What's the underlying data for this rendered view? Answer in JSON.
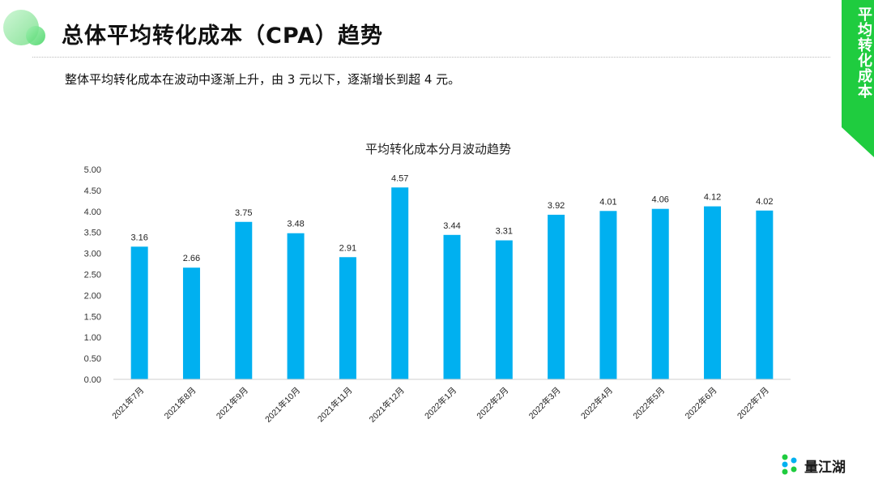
{
  "header": {
    "title": "总体平均转化成本（CPA）趋势",
    "subtitle": "整体平均转化成本在波动中逐渐上升，由 3 元以下，逐渐增长到超 4 元。"
  },
  "side_tab": {
    "label": "平均转化成本"
  },
  "brand": {
    "name": "量江湖"
  },
  "colors": {
    "accent": "#1fcc3f",
    "bar": "#00b0f0"
  },
  "chart_data": {
    "type": "bar",
    "title": "平均转化成本分月波动趋势",
    "categories": [
      "2021年7月",
      "2021年8月",
      "2021年9月",
      "2021年10月",
      "2021年11月",
      "2021年12月",
      "2022年1月",
      "2022年2月",
      "2022年3月",
      "2022年4月",
      "2022年5月",
      "2022年6月",
      "2022年7月"
    ],
    "values": [
      3.16,
      2.66,
      3.75,
      3.48,
      2.91,
      4.57,
      3.44,
      3.31,
      3.92,
      4.01,
      4.06,
      4.12,
      4.02
    ],
    "data_labels": [
      "3.16",
      "2.66",
      "3.75",
      "3.48",
      "2.91",
      "4.57",
      "3.44",
      "3.31",
      "3.92",
      "4.01",
      "4.06",
      "4.12",
      "4.02"
    ],
    "y_ticks": [
      "0.00",
      "0.50",
      "1.00",
      "1.50",
      "2.00",
      "2.50",
      "3.00",
      "3.50",
      "4.00",
      "4.50",
      "5.00"
    ],
    "ylim": [
      0,
      5
    ],
    "grid": false,
    "legend": "none"
  }
}
